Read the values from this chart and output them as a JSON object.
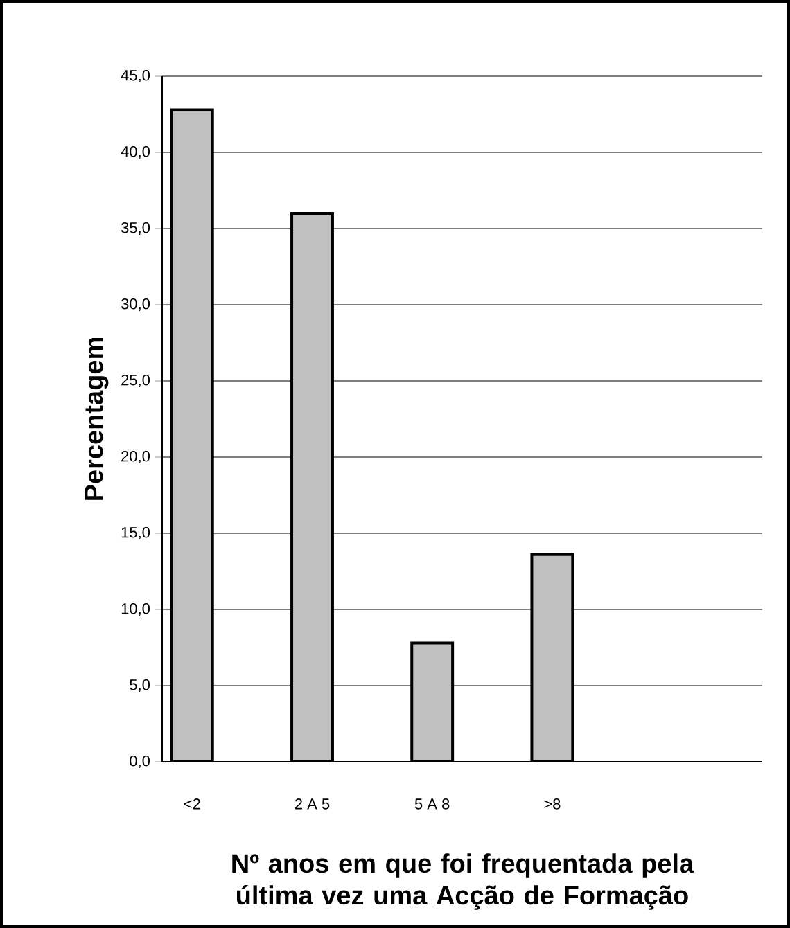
{
  "chart_data": {
    "type": "bar",
    "xlabel": "Nº anos em que foi frequentada pela última vez uma Acção de Formação",
    "ylabel": "Percentagem",
    "categories": [
      "<2",
      null,
      "2 A 5",
      null,
      "5 A 8",
      null,
      ">8",
      null,
      null,
      null
    ],
    "values": [
      42.8,
      null,
      36.0,
      null,
      7.8,
      null,
      13.6,
      null,
      null,
      null
    ],
    "color": "#c0c0c0",
    "ylim": [
      0,
      45
    ],
    "yticks": [
      {
        "value": 0,
        "label": "0,0"
      },
      {
        "value": 5,
        "label": "5,0"
      },
      {
        "value": 10,
        "label": "10,0"
      },
      {
        "value": 15,
        "label": "15,0"
      },
      {
        "value": 20,
        "label": "20,0"
      },
      {
        "value": 25,
        "label": "25,0"
      },
      {
        "value": 30,
        "label": "30,0"
      },
      {
        "value": 35,
        "label": "35,0"
      },
      {
        "value": 40,
        "label": "40,0"
      },
      {
        "value": 45,
        "label": "45,0"
      }
    ],
    "grid": "y"
  }
}
